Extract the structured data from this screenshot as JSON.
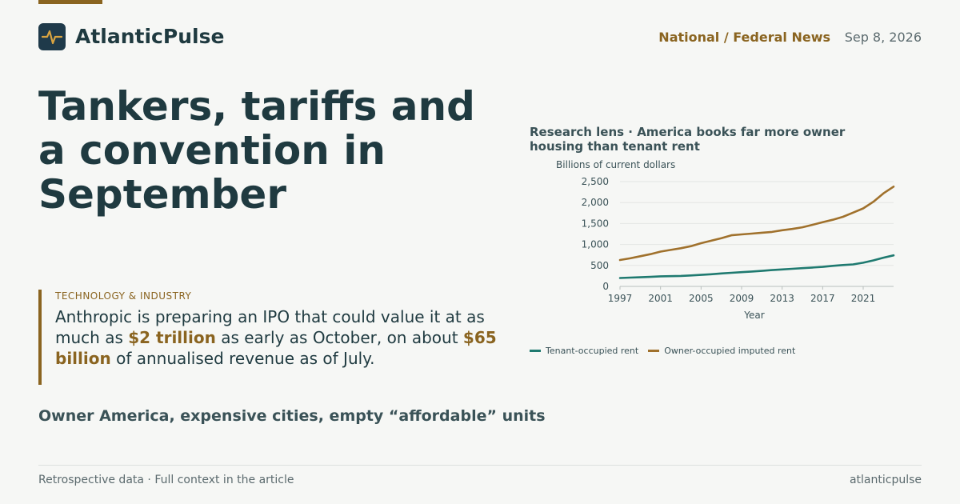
{
  "brand": {
    "name": "AtlanticPulse",
    "icon": "pulse-icon"
  },
  "header": {
    "section": "National / Federal News",
    "date": "Sep 8, 2026"
  },
  "headline": "Tankers, tariffs and a convention in September",
  "callout": {
    "kicker": "TECHNOLOGY & INDUSTRY",
    "text_1": "Anthropic is preparing an IPO that could value it at as much as ",
    "highlight_1": "$2 trillion",
    "text_2": " as early as October, on about ",
    "highlight_2": "$65 billion",
    "text_3": " of annualised revenue as of July."
  },
  "subhead": "Owner America, expensive cities, empty “affordable” units",
  "footer": {
    "left": "Retrospective data · Full context in the article",
    "right": "atlanticpulse"
  },
  "colors": {
    "accent": "#8a6420",
    "tenant": "#1f7a70",
    "owner": "#a0712c",
    "ink": "#1f3a40"
  },
  "chart": {
    "title": "Research lens · America books far more owner housing than tenant rent",
    "unit_label": "Billions of current dollars"
  },
  "chart_data": {
    "type": "line",
    "title": "Research lens · America books far more owner housing than tenant rent",
    "xlabel": "Year",
    "ylabel": "Billions of current dollars",
    "xlim": [
      1997,
      2024
    ],
    "ylim": [
      0,
      2500
    ],
    "x_ticks": [
      "1997",
      "2001",
      "2005",
      "2009",
      "2013",
      "2017",
      "2021"
    ],
    "y_ticks": [
      "0",
      "500",
      "1,000",
      "1,500",
      "2,000",
      "2,500"
    ],
    "grid": true,
    "legend": "bottom",
    "x": [
      1997,
      1998,
      1999,
      2000,
      2001,
      2002,
      2003,
      2004,
      2005,
      2006,
      2007,
      2008,
      2009,
      2010,
      2011,
      2012,
      2013,
      2014,
      2015,
      2016,
      2017,
      2018,
      2019,
      2020,
      2021,
      2022,
      2023,
      2024
    ],
    "series": [
      {
        "name": "Tenant-occupied rent",
        "values": [
          200,
          210,
          218,
          228,
          240,
          245,
          250,
          262,
          275,
          290,
          310,
          325,
          340,
          355,
          370,
          390,
          405,
          420,
          435,
          450,
          465,
          490,
          510,
          525,
          565,
          620,
          685,
          740
        ]
      },
      {
        "name": "Owner-occupied imputed rent",
        "values": [
          630,
          670,
          720,
          770,
          830,
          870,
          910,
          960,
          1030,
          1090,
          1150,
          1220,
          1240,
          1260,
          1280,
          1300,
          1340,
          1370,
          1410,
          1470,
          1530,
          1590,
          1660,
          1760,
          1860,
          2020,
          2220,
          2380
        ]
      }
    ]
  }
}
